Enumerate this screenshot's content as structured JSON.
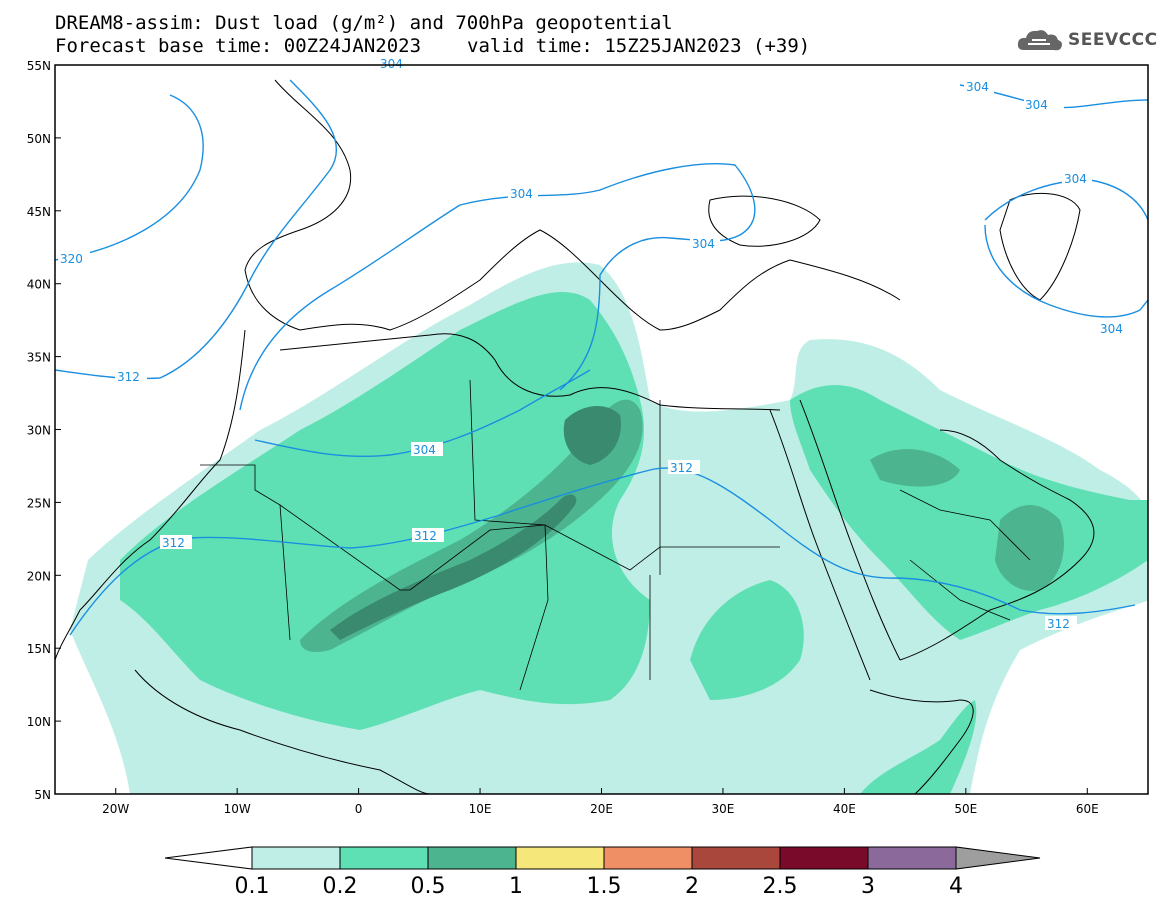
{
  "title": {
    "line1": "DREAM8-assim: Dust load (g/m²) and 700hPa geopotential",
    "base_time": "Forecast base time: 00Z24JAN2023",
    "valid_time": "valid time: 15Z25JAN2023 (+39)"
  },
  "logo": {
    "text": "SEEVCCC",
    "icon": "cloud-icon"
  },
  "map": {
    "lon_range": [
      -25,
      65
    ],
    "lat_range": [
      5,
      55
    ],
    "lat_ticks": [
      "55N",
      "50N",
      "45N",
      "40N",
      "35N",
      "30N",
      "25N",
      "20N",
      "15N",
      "10N",
      "5N"
    ],
    "lon_ticks": [
      "20W",
      "10W",
      "0",
      "10E",
      "20E",
      "30E",
      "40E",
      "50E",
      "60E"
    ],
    "contour_labels": [
      "304",
      "304",
      "304",
      "304",
      "304",
      "304",
      "320",
      "312",
      "312",
      "312",
      "312",
      "312",
      "304"
    ]
  },
  "colorbar": {
    "labels": [
      "0.1",
      "0.2",
      "0.5",
      "1",
      "1.5",
      "2",
      "2.5",
      "3",
      "4"
    ],
    "colors": [
      "#ffffff",
      "#bfeee6",
      "#5fe0b4",
      "#4cb48e",
      "#f5e77a",
      "#ee8f66",
      "#a9473c",
      "#7a0a2a",
      "#8b6a9b",
      "#9e9e9e"
    ]
  },
  "colors": {
    "contour": "#1a8fe0",
    "light_dust": "#bfeee6",
    "mid_dust": "#5fe0b4",
    "high_dust": "#4cb48e",
    "peak_dust": "#3a8a70"
  }
}
